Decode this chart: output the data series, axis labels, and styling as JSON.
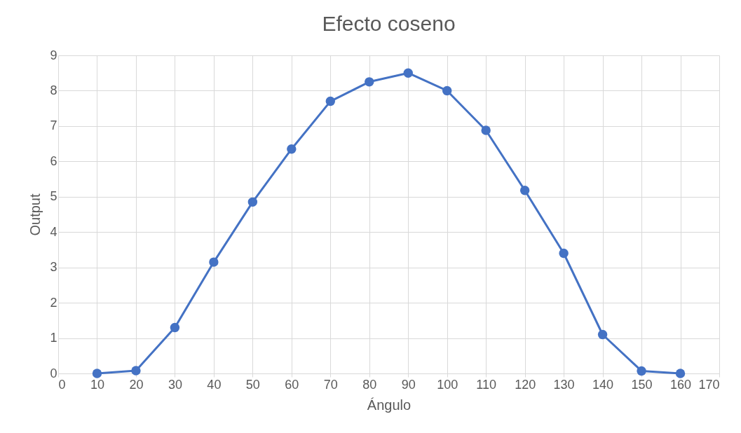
{
  "chart_data": {
    "type": "line",
    "title": "Efecto coseno",
    "xlabel": "Ángulo",
    "ylabel": "Output",
    "x": [
      10,
      20,
      30,
      40,
      50,
      60,
      70,
      80,
      90,
      100,
      110,
      120,
      130,
      140,
      150,
      160
    ],
    "series": [
      {
        "color": "#4472c4",
        "values": [
          0,
          0.08,
          1.3,
          3.15,
          4.85,
          6.35,
          7.7,
          8.25,
          8.5,
          8.0,
          6.88,
          5.18,
          3.4,
          1.1,
          0.07,
          0
        ]
      }
    ],
    "xlim": [
      0,
      170
    ],
    "xticks": [
      0,
      10,
      20,
      30,
      40,
      50,
      60,
      70,
      80,
      90,
      100,
      110,
      120,
      130,
      140,
      150,
      160,
      170
    ],
    "ylim": [
      0,
      9
    ],
    "yticks": [
      0,
      1,
      2,
      3,
      4,
      5,
      6,
      7,
      8,
      9
    ],
    "grid": true,
    "marker": "circle",
    "line_style": "solid"
  }
}
